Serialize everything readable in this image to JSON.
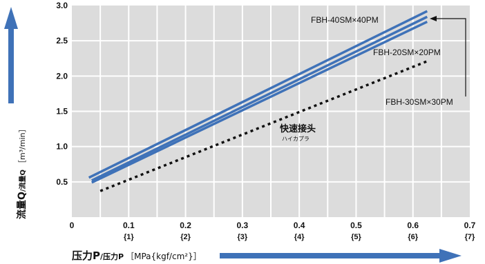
{
  "chart_data": {
    "type": "line",
    "xlim": [
      0,
      0.7
    ],
    "ylim": [
      0,
      3.0
    ],
    "x_ticks": [
      "0",
      "0.1",
      "0.2",
      "0.3",
      "0.4",
      "0.5",
      "0.6",
      "0.7"
    ],
    "x_ticks_secondary": [
      "{1}",
      "{2}",
      "{3}",
      "{4}",
      "{5}",
      "{6}",
      "{7}"
    ],
    "y_ticks": [
      "0.5",
      "1.0",
      "1.5",
      "2.0",
      "2.5",
      "3.0"
    ],
    "grid": true,
    "xlabel": {
      "main": "压力P",
      "sub": "/压力P",
      "unit": "［MPa{kgf/cm²}］"
    },
    "ylabel": {
      "main": "流量Q",
      "sub": "/流量Q",
      "unit": "［m³/min］"
    },
    "series": [
      {
        "name": "FBH-40SM×40PM",
        "style": "solid",
        "color": "#3f72b8",
        "points": [
          [
            0.03,
            0.56
          ],
          [
            0.625,
            2.92
          ]
        ]
      },
      {
        "name": "FBH-20SM×20PM",
        "style": "solid",
        "color": "#3f72b8",
        "points": [
          [
            0.035,
            0.52
          ],
          [
            0.625,
            2.84
          ]
        ]
      },
      {
        "name": "FBH-30SM×30PM",
        "style": "solid",
        "color": "#3f72b8",
        "points": [
          [
            0.035,
            0.49
          ],
          [
            0.625,
            2.77
          ]
        ]
      },
      {
        "name": "快速接头",
        "subname": "ハイカプラ",
        "style": "dashed",
        "color": "#111111",
        "points": [
          [
            0.05,
            0.37
          ],
          [
            0.625,
            2.21
          ]
        ]
      }
    ],
    "annotations": {
      "label_40": "FBH-40SM×40PM",
      "label_20": "FBH-20SM×20PM",
      "label_30": "FBH-30SM×30PM",
      "coupler": "快速接头",
      "coupler_sub": "ハイカプラ"
    }
  }
}
